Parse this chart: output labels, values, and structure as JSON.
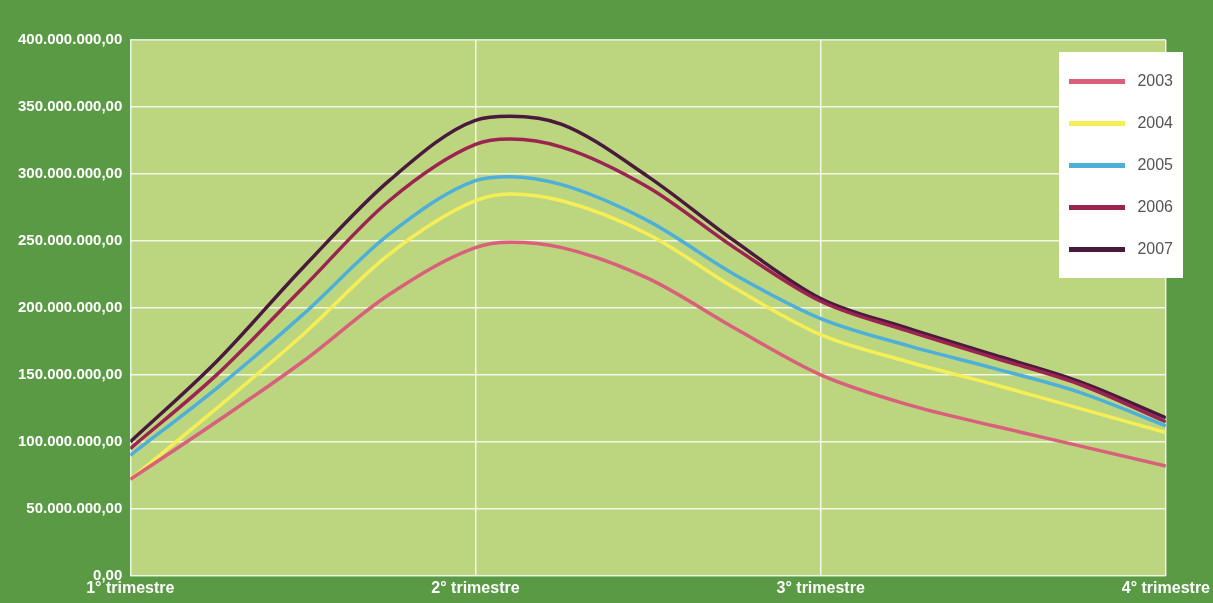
{
  "chart_data": {
    "type": "line",
    "x": [
      1,
      1.25,
      1.5,
      1.75,
      2,
      2.1,
      2.25,
      2.5,
      2.75,
      3,
      3.25,
      3.5,
      3.75,
      4
    ],
    "series": [
      {
        "name": "2003",
        "color": "#d9607a",
        "values": [
          72000000,
          115000000,
          160000000,
          210000000,
          245000000,
          249000000,
          245000000,
          222000000,
          185000000,
          150000000,
          128000000,
          112000000,
          97000000,
          82000000
        ]
      },
      {
        "name": "2004",
        "color": "#f5ef55",
        "values": [
          72000000,
          125000000,
          180000000,
          240000000,
          280000000,
          285000000,
          280000000,
          255000000,
          215000000,
          180000000,
          160000000,
          143000000,
          125000000,
          107000000
        ]
      },
      {
        "name": "2005",
        "color": "#4eb0d8",
        "values": [
          90000000,
          140000000,
          195000000,
          255000000,
          295000000,
          298000000,
          292000000,
          265000000,
          225000000,
          192000000,
          172000000,
          155000000,
          137000000,
          112000000
        ]
      },
      {
        "name": "2006",
        "color": "#9b2550",
        "values": [
          95000000,
          150000000,
          215000000,
          280000000,
          322000000,
          326000000,
          320000000,
          290000000,
          245000000,
          205000000,
          183000000,
          163000000,
          143000000,
          115000000
        ]
      },
      {
        "name": "2007",
        "color": "#4a1a3c",
        "values": [
          100000000,
          160000000,
          230000000,
          295000000,
          340000000,
          343000000,
          337000000,
          298000000,
          250000000,
          207000000,
          185000000,
          165000000,
          145000000,
          118000000
        ]
      }
    ],
    "xlim": [
      1,
      4
    ],
    "xticks": [
      {
        "value": 1,
        "label": "1° trimestre"
      },
      {
        "value": 2,
        "label": "2° trimestre"
      },
      {
        "value": 3,
        "label": "3° trimestre"
      },
      {
        "value": 4,
        "label": "4° trimestre"
      }
    ],
    "ylim": [
      0,
      400000000
    ],
    "yticks": [
      {
        "value": 0,
        "label": "0,00"
      },
      {
        "value": 50000000,
        "label": "50.000.000,00"
      },
      {
        "value": 100000000,
        "label": "100.000.000,00"
      },
      {
        "value": 150000000,
        "label": "150.000.000,00"
      },
      {
        "value": 200000000,
        "label": "200.000.000,00"
      },
      {
        "value": 250000000,
        "label": "250.000.000,00"
      },
      {
        "value": 300000000,
        "label": "300.000.000,00"
      },
      {
        "value": 350000000,
        "label": "350.000.000,00"
      },
      {
        "value": 400000000,
        "label": "400.000.000,00"
      }
    ],
    "grid": true,
    "legend": "top right",
    "marker": "none",
    "line_style": "solid"
  }
}
